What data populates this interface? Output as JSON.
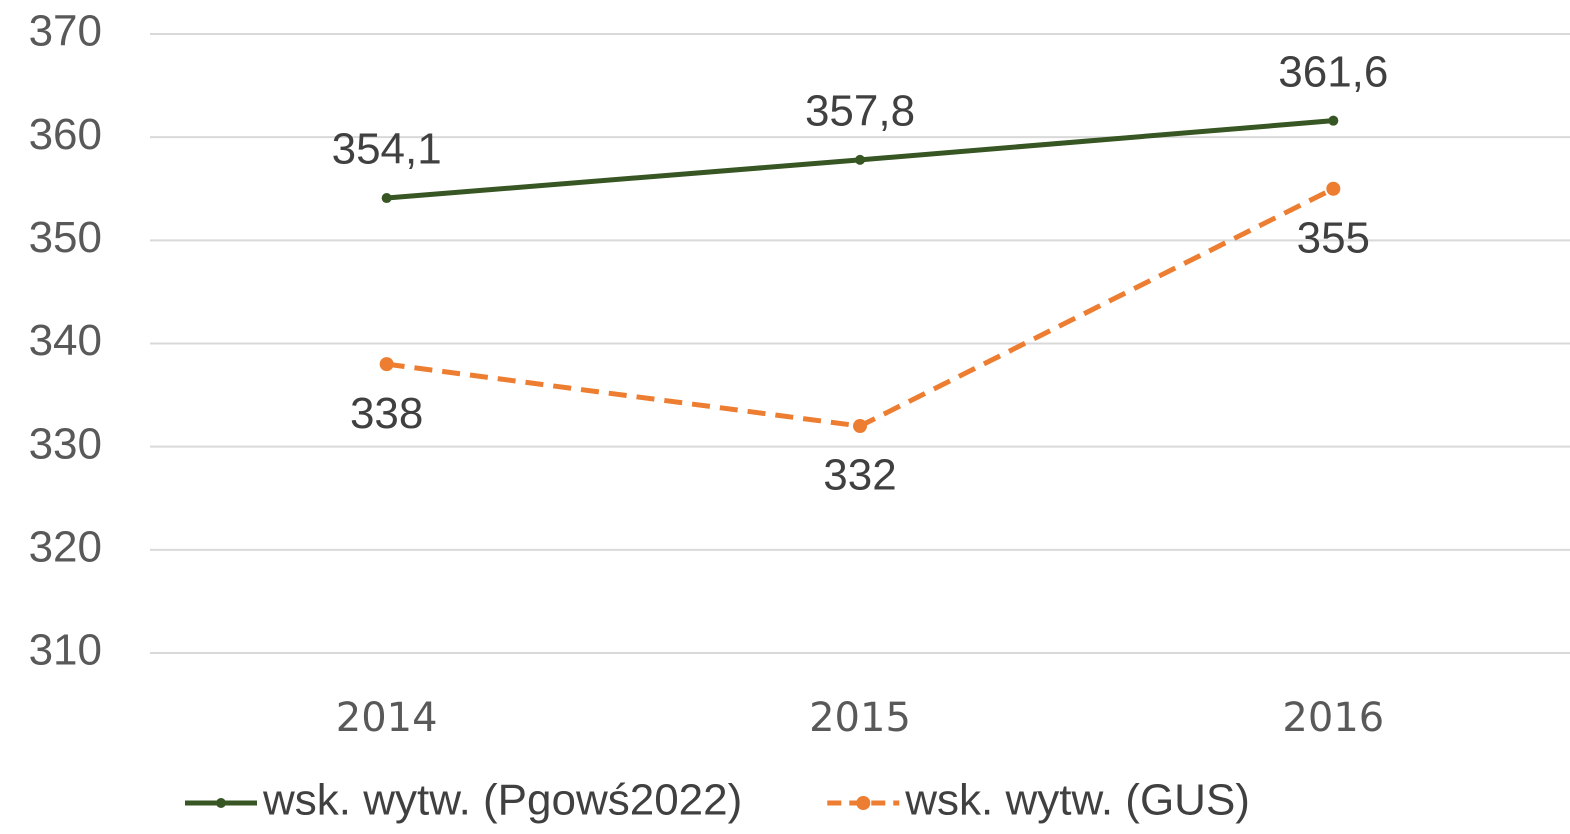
{
  "chart_data": {
    "type": "line",
    "categories": [
      "2014",
      "2015",
      "2016"
    ],
    "series": [
      {
        "name": "wsk. wytw. (Pgowś2022)",
        "color": "#375623",
        "dash": false,
        "values": [
          354.1,
          357.8,
          361.6
        ],
        "value_labels": [
          "354,1",
          "357,8",
          "361,6"
        ]
      },
      {
        "name": "wsk. wytw. (GUS)",
        "color": "#ed7d31",
        "dash": true,
        "values": [
          338,
          332,
          355
        ]
      }
    ],
    "ylim": [
      310,
      370
    ],
    "yticks": [
      310,
      320,
      330,
      340,
      350,
      360,
      370
    ],
    "grid": true,
    "legend": "bottom"
  }
}
